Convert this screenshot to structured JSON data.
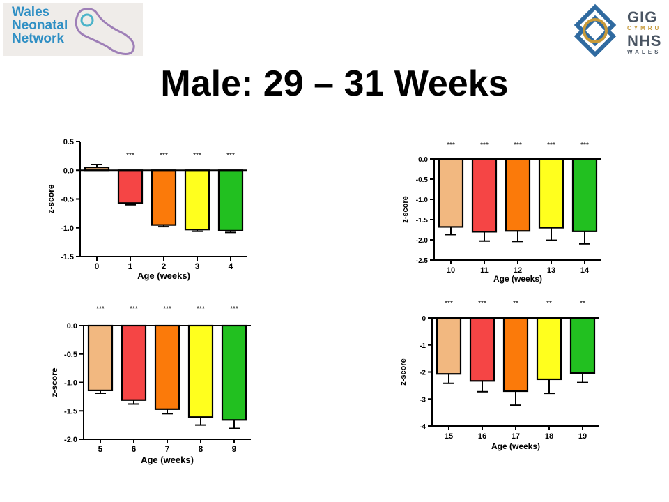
{
  "header": {
    "title": "Male: 29 – 31 Weeks",
    "logo_left": {
      "line1": "Wales",
      "line2": "Neonatal",
      "line3": "Network",
      "color": "#2f8fc4"
    },
    "logo_right": {
      "line1": "GIG",
      "line2": "CYMRU",
      "line3": "NHS",
      "line4": "WALES"
    }
  },
  "colors": {
    "bars": [
      "#f2b880",
      "#f54545",
      "#fb7a0a",
      "#ffff1e",
      "#22c020"
    ]
  },
  "chart_data": [
    {
      "type": "bar",
      "categories": [
        "0",
        "1",
        "2",
        "3",
        "4"
      ],
      "values": [
        0.05,
        -0.57,
        -0.95,
        -1.03,
        -1.05
      ],
      "errors": [
        0.05,
        0.03,
        0.03,
        0.03,
        0.03
      ],
      "significance": [
        "",
        "***",
        "***",
        "***",
        "***"
      ],
      "xlabel": "Age (weeks)",
      "ylabel": "z-score",
      "ylim": [
        -1.5,
        0.5
      ],
      "yticks": [
        0.5,
        0.0,
        -0.5,
        -1.0,
        -1.5
      ],
      "yticklabels": [
        "0.5",
        "0.0",
        "-0.5",
        "-1.0",
        "-1.5"
      ]
    },
    {
      "type": "bar",
      "categories": [
        "10",
        "11",
        "12",
        "13",
        "14"
      ],
      "values": [
        -1.68,
        -1.8,
        -1.78,
        -1.7,
        -1.79
      ],
      "errors": [
        0.19,
        0.23,
        0.26,
        0.31,
        0.31
      ],
      "significance": [
        "***",
        "***",
        "***",
        "***",
        "***"
      ],
      "xlabel": "Age (weeks)",
      "ylabel": "z-score",
      "ylim": [
        -2.5,
        0.0
      ],
      "yticks": [
        0.0,
        -0.5,
        -1.0,
        -1.5,
        -2.0,
        -2.5
      ],
      "yticklabels": [
        "0.0",
        "-0.5",
        "-1.0",
        "-1.5",
        "-2.0",
        "-2.5"
      ]
    },
    {
      "type": "bar",
      "categories": [
        "5",
        "6",
        "7",
        "8",
        "9"
      ],
      "values": [
        -1.14,
        -1.31,
        -1.47,
        -1.61,
        -1.66
      ],
      "errors": [
        0.05,
        0.07,
        0.08,
        0.14,
        0.15
      ],
      "significance": [
        "***",
        "***",
        "***",
        "***",
        "***"
      ],
      "xlabel": "Age (weeks)",
      "ylabel": "z-score",
      "ylim": [
        -2.0,
        0.0
      ],
      "yticks": [
        0.0,
        -0.5,
        -1.0,
        -1.5,
        -2.0
      ],
      "yticklabels": [
        "0.0",
        "-0.5",
        "-1.0",
        "-1.5",
        "-2.0"
      ]
    },
    {
      "type": "bar",
      "categories": [
        "15",
        "16",
        "17",
        "18",
        "19"
      ],
      "values": [
        -2.07,
        -2.33,
        -2.71,
        -2.27,
        -2.04
      ],
      "errors": [
        0.35,
        0.4,
        0.52,
        0.52,
        0.35
      ],
      "significance": [
        "***",
        "***",
        "**",
        "**",
        "**"
      ],
      "xlabel": "Age (weeks)",
      "ylabel": "z-score",
      "ylim": [
        -4,
        0
      ],
      "yticks": [
        0,
        -1,
        -2,
        -3,
        -4
      ],
      "yticklabels": [
        "0",
        "-1",
        "-2",
        "-3",
        "-4"
      ]
    }
  ]
}
